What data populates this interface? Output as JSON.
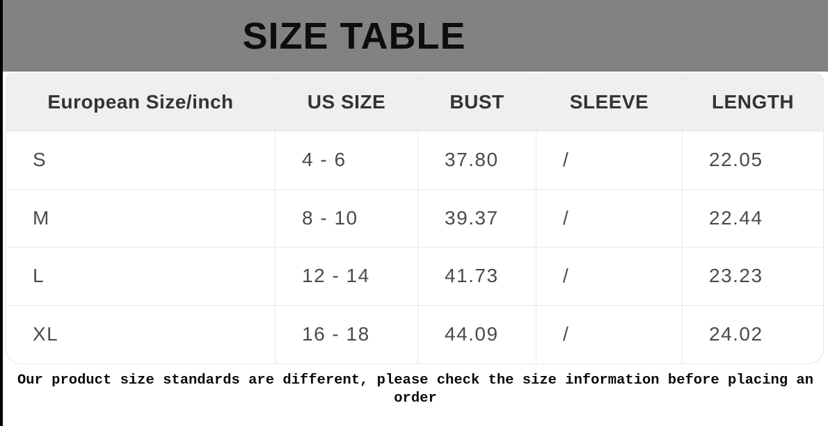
{
  "banner": {
    "title_label": "SIZE TABLE"
  },
  "chart_data": {
    "type": "table",
    "title": "SIZE TABLE",
    "columns": [
      "European Size/inch",
      "US SIZE",
      "BUST",
      "SLEEVE",
      "LENGTH"
    ],
    "rows": [
      [
        "S",
        "4 - 6",
        "37.80",
        "/",
        "22.05"
      ],
      [
        "M",
        "8 - 10",
        "39.37",
        "/",
        "22.44"
      ],
      [
        "L",
        "12 - 14",
        "41.73",
        "/",
        "23.23"
      ],
      [
        "XL",
        "16 - 18",
        "44.09",
        "/",
        "24.02"
      ]
    ],
    "note": "Our product size standards are different, please check the size information before placing an order"
  },
  "colors": {
    "banner_bg": "#828282",
    "banner_text": "#0d0d0d",
    "header_row_bg": "#efefef",
    "header_text": "#333333",
    "cell_text": "#4a4a4a",
    "grid_line": "#e8e8e8",
    "note_text": "#0a0a0a",
    "left_edge_border": "#000000",
    "page_bg": "#ffffff"
  }
}
